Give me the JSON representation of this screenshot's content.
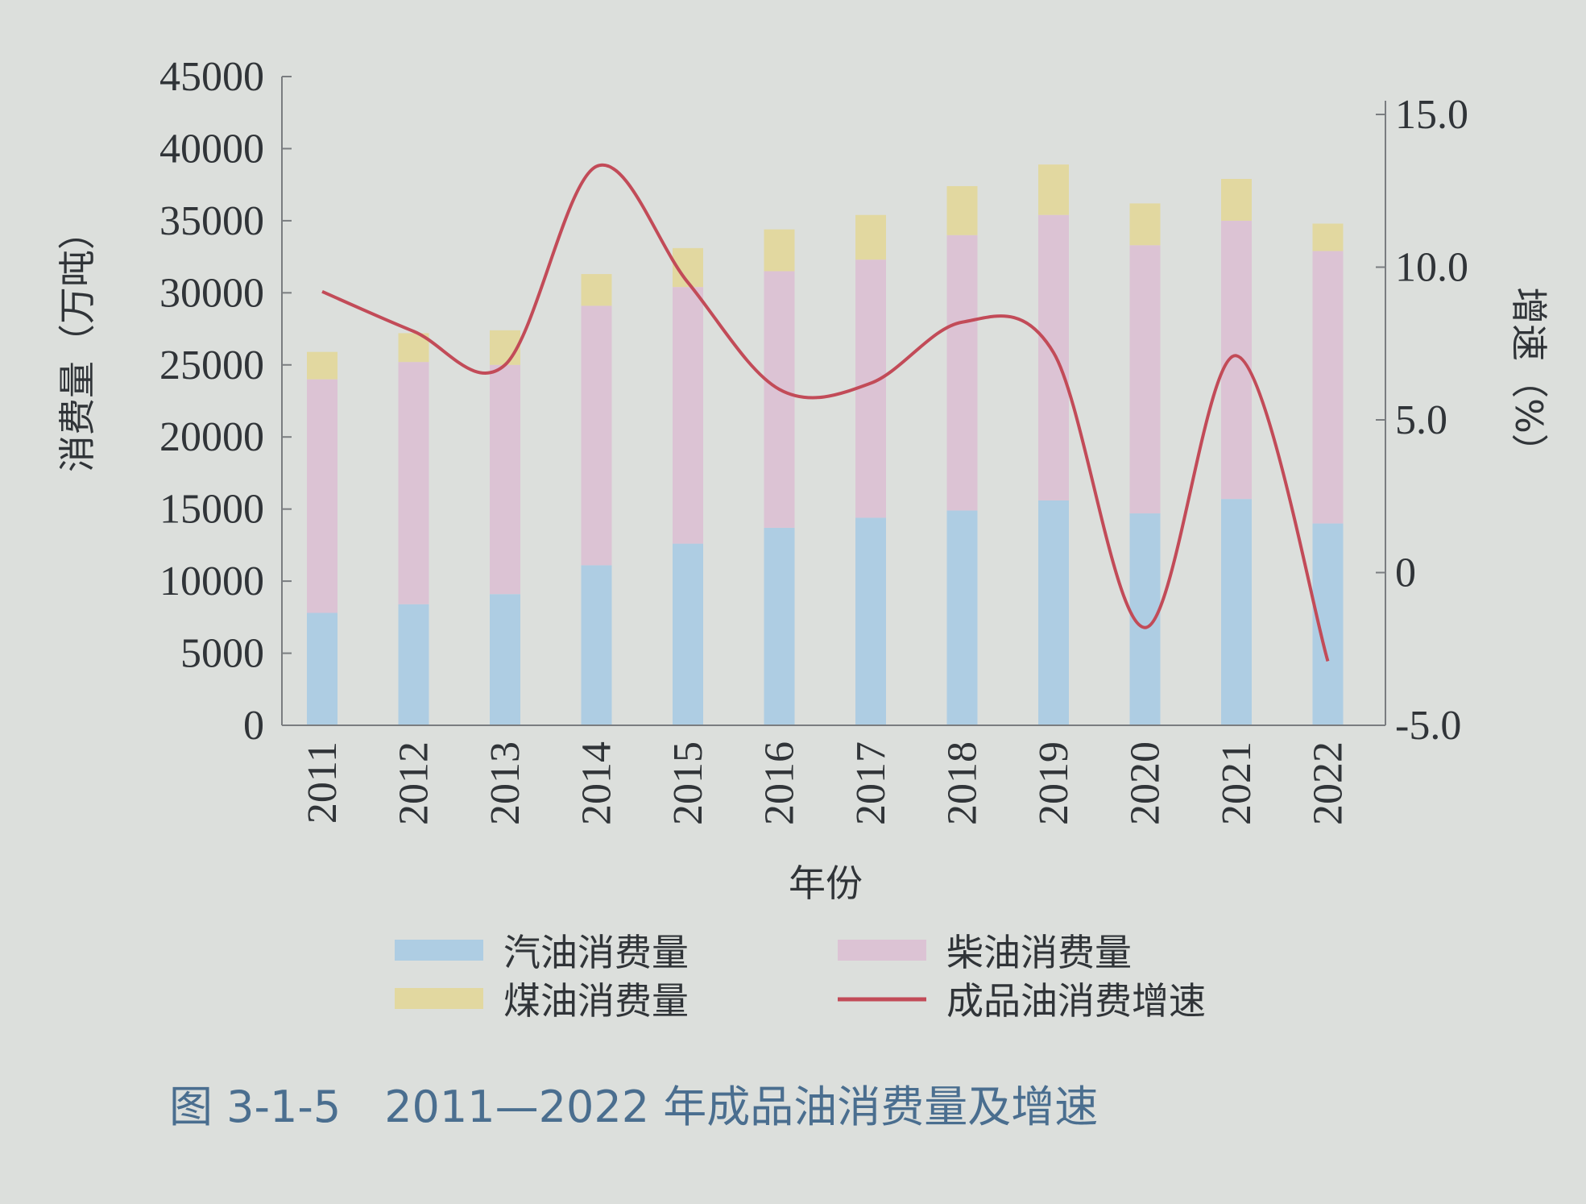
{
  "chart_data": {
    "type": "bar",
    "stacked": true,
    "categories": [
      "2011",
      "2012",
      "2013",
      "2014",
      "2015",
      "2016",
      "2017",
      "2018",
      "2019",
      "2020",
      "2021",
      "2022"
    ],
    "series": [
      {
        "name": "汽油消费量",
        "kind": "bar",
        "axis": "left",
        "color": "#aecde3",
        "values": [
          7800,
          8400,
          9100,
          11100,
          12600,
          13700,
          14400,
          14900,
          15600,
          14700,
          15700,
          14000
        ]
      },
      {
        "name": "柴油消费量",
        "kind": "bar",
        "axis": "left",
        "color": "#dcc3d4",
        "values": [
          16200,
          16800,
          15900,
          18000,
          17800,
          17800,
          17900,
          19100,
          19800,
          18600,
          19300,
          18900
        ]
      },
      {
        "name": "煤油消费量",
        "kind": "bar",
        "axis": "left",
        "color": "#e2d8a0",
        "values": [
          1900,
          2000,
          2400,
          2200,
          2700,
          2900,
          3100,
          3400,
          3500,
          2900,
          2900,
          1900
        ]
      },
      {
        "name": "成品油消费增速",
        "kind": "line",
        "axis": "right",
        "color": "#c24b58",
        "values": [
          9.2,
          7.9,
          6.8,
          13.3,
          9.5,
          6.0,
          6.2,
          8.2,
          7.2,
          -1.8,
          7.1,
          -2.9
        ]
      }
    ],
    "y_left": {
      "label": "消费量（万吨）",
      "min": 0,
      "max": 45000,
      "ticks": [
        0,
        5000,
        10000,
        15000,
        20000,
        25000,
        30000,
        35000,
        40000,
        45000
      ]
    },
    "y_right": {
      "label": "增速（%）",
      "min": -5,
      "max": 15,
      "ticks": [
        "-5.0",
        "0",
        "5.0",
        "10.0",
        "15.0"
      ]
    },
    "xlabel": "年份",
    "legend_position": "bottom",
    "grid": false,
    "caption": "图 3-1-5　2011—2022 年成品油消费量及增速"
  }
}
